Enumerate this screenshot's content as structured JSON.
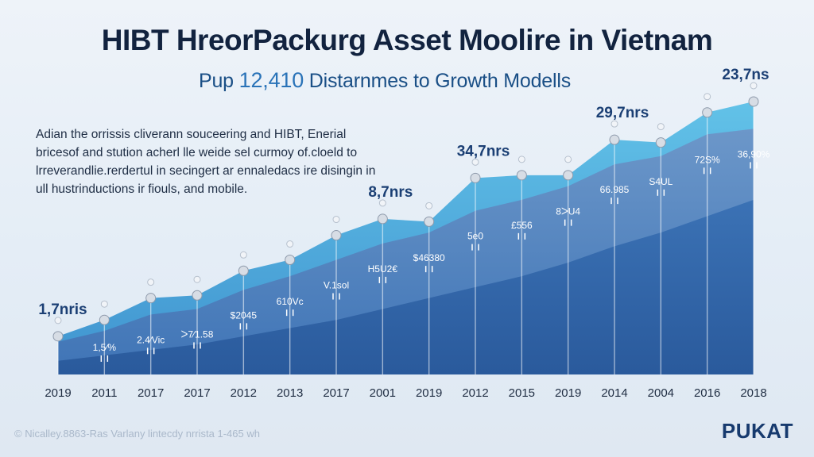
{
  "title": "HIBT HreorPackurg Asset Moolire in Vietnam",
  "subtitle": {
    "prefix": "Pup",
    "value": "12,410",
    "suffix": "Distarnmes to Growth Modells"
  },
  "description": [
    "Adian the orrissis cliverann souceering and HIBT, Enerial",
    "bricesof and stution acherl lle weide sel curmoy of.cloeld to",
    "lrreverandlie.rerdertul in secingert ar ennaledacs ire disingin in",
    "ull hustrinductions ir fiouls, and mobile."
  ],
  "footnote": "© Nicalley.8863-Ras Varlany lintecdy nrrista 1-465 wh",
  "brand": "PUKAT",
  "colors": {
    "area_light": "#5bb8e0",
    "area_mid": "#5f8ec4",
    "area_dark": "#2f64a8",
    "point": "#d7dde5",
    "callout": "#1b3f74"
  },
  "chart_data": {
    "type": "area",
    "title": "HIBT HreorPackurg Asset Moolire in Vietnam",
    "categories": [
      "2019",
      "2011",
      "2017",
      "2017",
      "2012",
      "2013",
      "2017",
      "2001",
      "2019",
      "2012",
      "2015",
      "2019",
      "2014",
      "2004",
      "2016",
      "2018"
    ],
    "ylim": [
      0,
      100
    ],
    "grid": false,
    "series": [
      {
        "values": [
          14,
          20,
          28,
          29,
          38,
          42,
          51,
          57,
          56,
          72,
          73,
          73,
          86,
          85,
          96,
          100
        ]
      },
      {
        "values": [
          12,
          16,
          22,
          24,
          31,
          36,
          42,
          48,
          52,
          60,
          64,
          69,
          77,
          80,
          88,
          90
        ]
      },
      {
        "values": [
          5,
          7,
          9,
          11,
          14,
          17,
          20,
          24,
          28,
          32,
          36,
          41,
          47,
          52,
          58,
          64
        ]
      }
    ],
    "point_labels": [
      "",
      "1,5⁄%",
      "2.4⁄Vic",
      "ᐳ7⁄1.58",
      "$2045",
      "610Vc",
      "V.1sol",
      "H5U2€",
      "$46380",
      "5e0",
      "£556",
      "8ᐳU4",
      "66.985",
      "S4UL",
      "72S%",
      "36,90%"
    ],
    "callouts": [
      {
        "index": 0,
        "text": "1,7nris"
      },
      {
        "index": 7,
        "text": "8,7nrs"
      },
      {
        "index": 9,
        "text": "34,7nrs"
      },
      {
        "index": 12,
        "text": "29,7nrs"
      },
      {
        "index": 15,
        "text": "23,7ns"
      }
    ]
  }
}
